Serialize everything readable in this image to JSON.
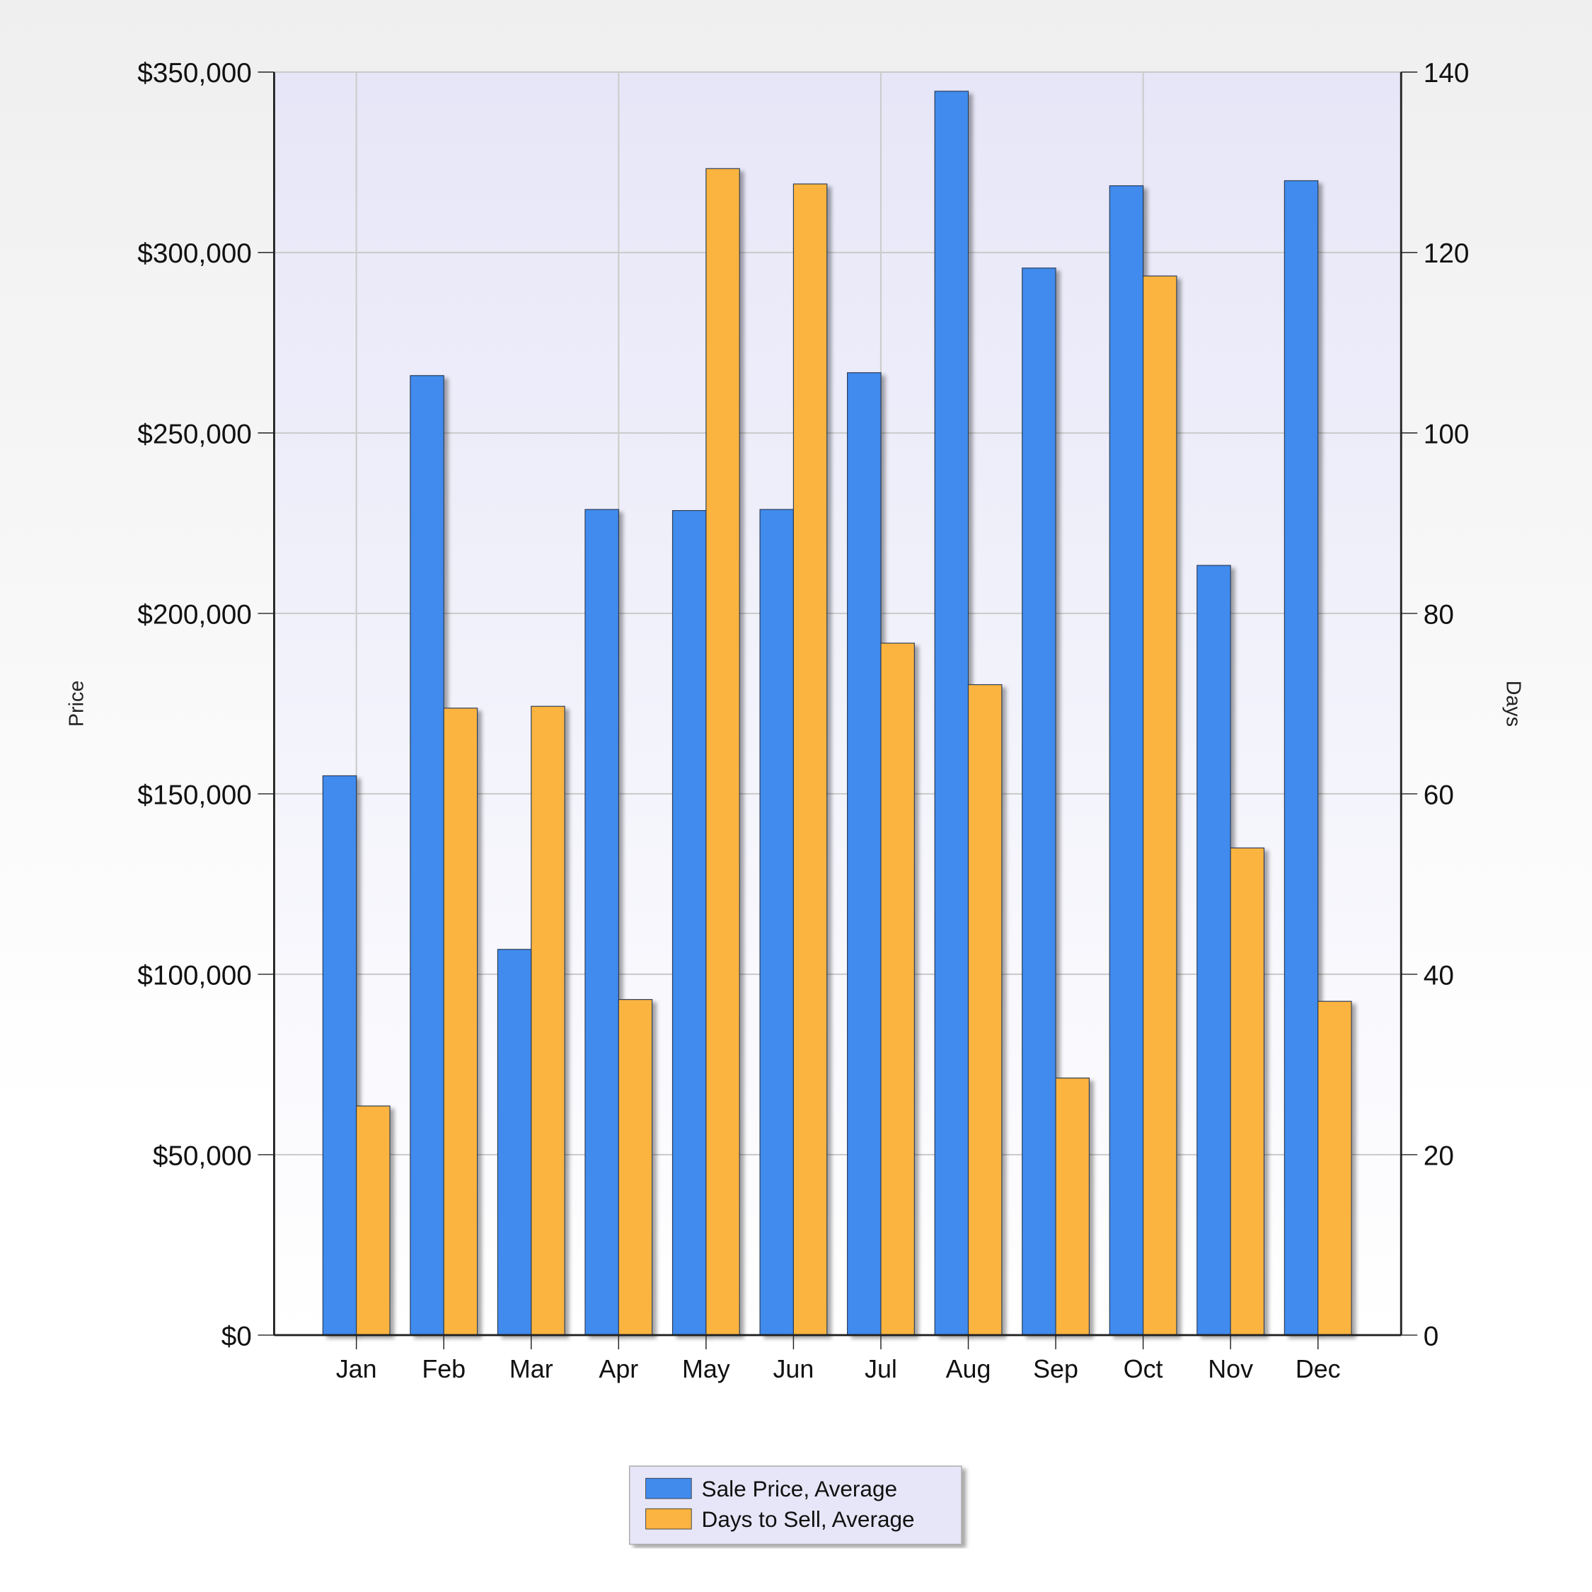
{
  "chart_data": {
    "type": "bar",
    "title": "",
    "categories": [
      "Jan",
      "Feb",
      "Mar",
      "Apr",
      "May",
      "Jun",
      "Jul",
      "Aug",
      "Sep",
      "Oct",
      "Nov",
      "Dec"
    ],
    "series": [
      {
        "name": "Sale Price, Average",
        "axis": "left",
        "color": "#418bed",
        "values": [
          155000,
          265900,
          106900,
          228800,
          228500,
          228800,
          266700,
          344700,
          295700,
          318500,
          213300,
          319900
        ]
      },
      {
        "name": "Days to Sell, Average",
        "axis": "right",
        "color": "#fbb441",
        "values": [
          25.4,
          69.5,
          69.7,
          37.2,
          129.3,
          127.6,
          76.7,
          72.1,
          28.5,
          117.4,
          54.0,
          37.0
        ]
      }
    ],
    "ylabel": "Price",
    "y2label": "Days",
    "ylim": [
      0,
      350000
    ],
    "y2lim": [
      0,
      140
    ],
    "yticks": [
      "$0",
      "$50,000",
      "$100,000",
      "$150,000",
      "$200,000",
      "$250,000",
      "$300,000",
      "$350,000"
    ],
    "y2ticks": [
      "0",
      "20",
      "40",
      "60",
      "80",
      "100",
      "120",
      "140"
    ],
    "grid": true,
    "legend": "bottom-center"
  }
}
